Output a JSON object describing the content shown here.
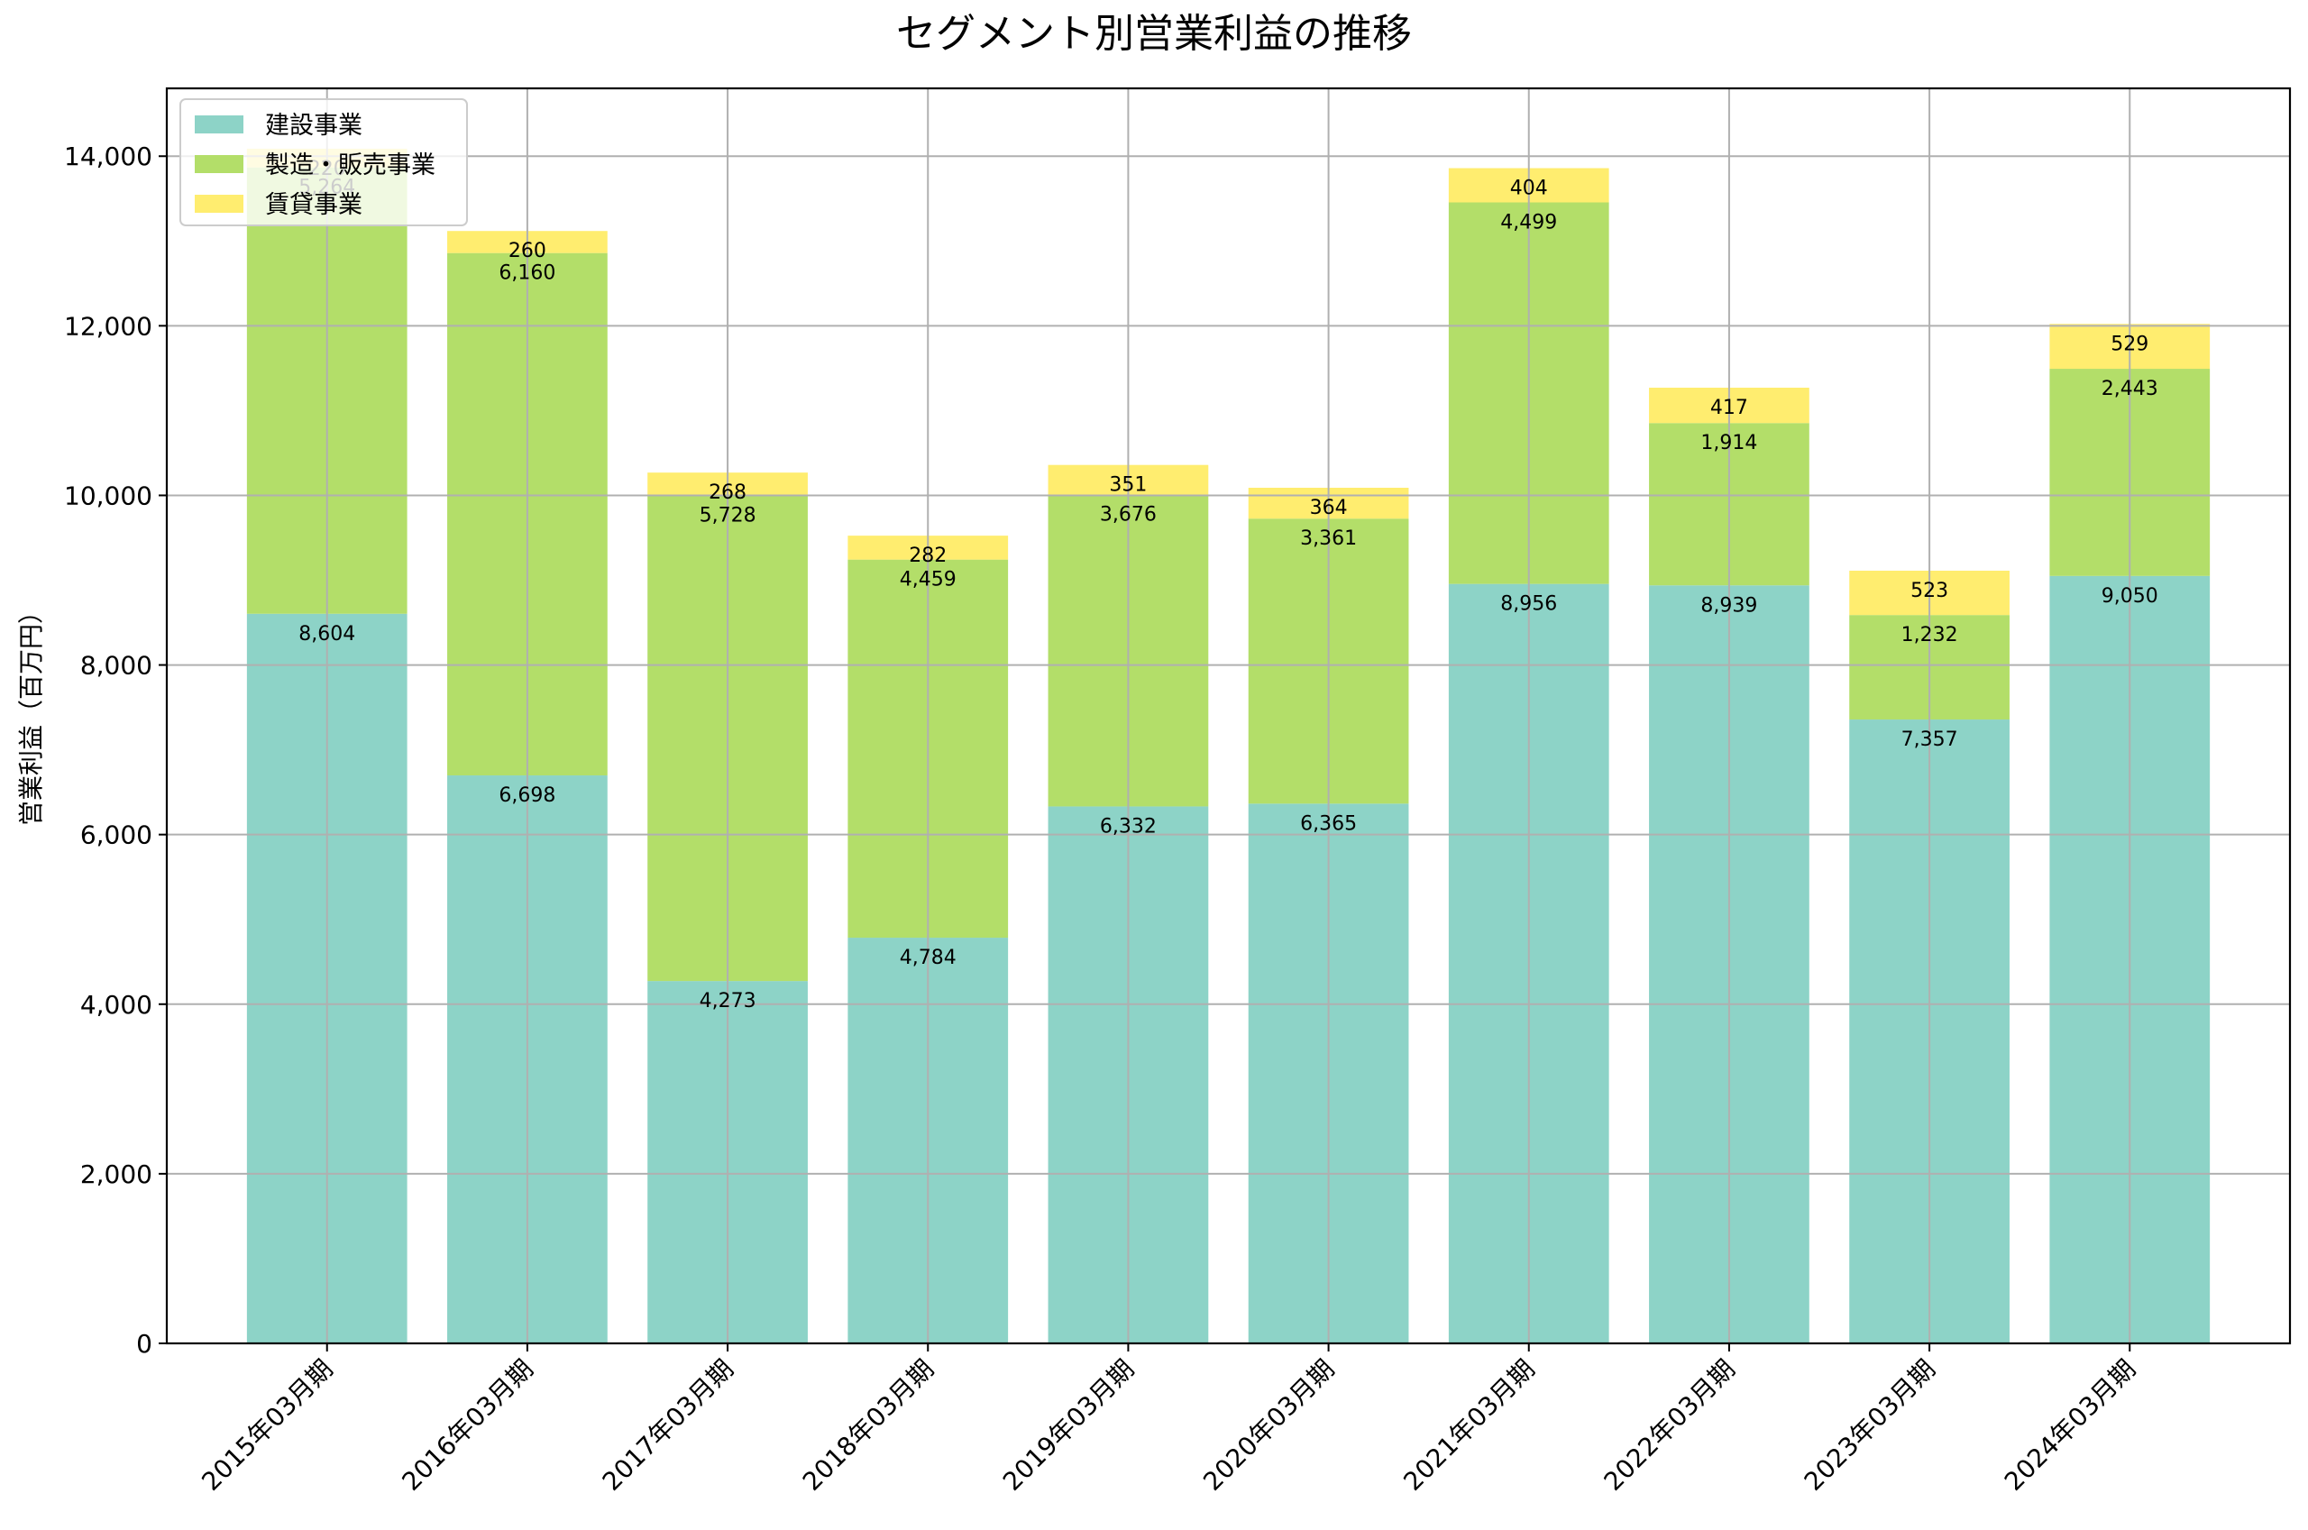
{
  "chart_data": {
    "type": "bar",
    "stacked": true,
    "title": "セグメント別営業利益の推移",
    "xlabel": "",
    "ylabel": "営業利益（百万円）",
    "ylim": [
      0,
      14800
    ],
    "yticks": [
      0,
      2000,
      4000,
      6000,
      8000,
      10000,
      12000,
      14000
    ],
    "ytick_labels": [
      "0",
      "2,000",
      "4,000",
      "6,000",
      "8,000",
      "10,000",
      "12,000",
      "14,000"
    ],
    "grid": true,
    "legend_position": "top-left",
    "categories": [
      "2015年03月期",
      "2016年03月期",
      "2017年03月期",
      "2018年03月期",
      "2019年03月期",
      "2020年03月期",
      "2021年03月期",
      "2022年03月期",
      "2023年03月期",
      "2024年03月期"
    ],
    "series": [
      {
        "name": "建設事業",
        "color": "#8dd3c7",
        "values": [
          8604,
          6698,
          4273,
          4784,
          6332,
          6365,
          8956,
          8939,
          7357,
          9050
        ],
        "labels": [
          "8,604",
          "6,698",
          "4,273",
          "4,784",
          "6,332",
          "6,365",
          "8,956",
          "8,939",
          "7,357",
          "9,050"
        ]
      },
      {
        "name": "製造・販売事業",
        "color": "#b3de69",
        "values": [
          5264,
          6160,
          5728,
          4459,
          3676,
          3361,
          4499,
          1914,
          1232,
          2443
        ],
        "labels": [
          "5,264",
          "6,160",
          "5,728",
          "4,459",
          "3,676",
          "3,361",
          "4,499",
          "1,914",
          "1,232",
          "2,443"
        ]
      },
      {
        "name": "賃貸事業",
        "color": "#ffed6f",
        "values": [
          220,
          260,
          268,
          282,
          351,
          364,
          404,
          417,
          523,
          529
        ],
        "labels": [
          "220",
          "260",
          "268",
          "282",
          "351",
          "364",
          "404",
          "417",
          "523",
          "529"
        ]
      }
    ]
  }
}
